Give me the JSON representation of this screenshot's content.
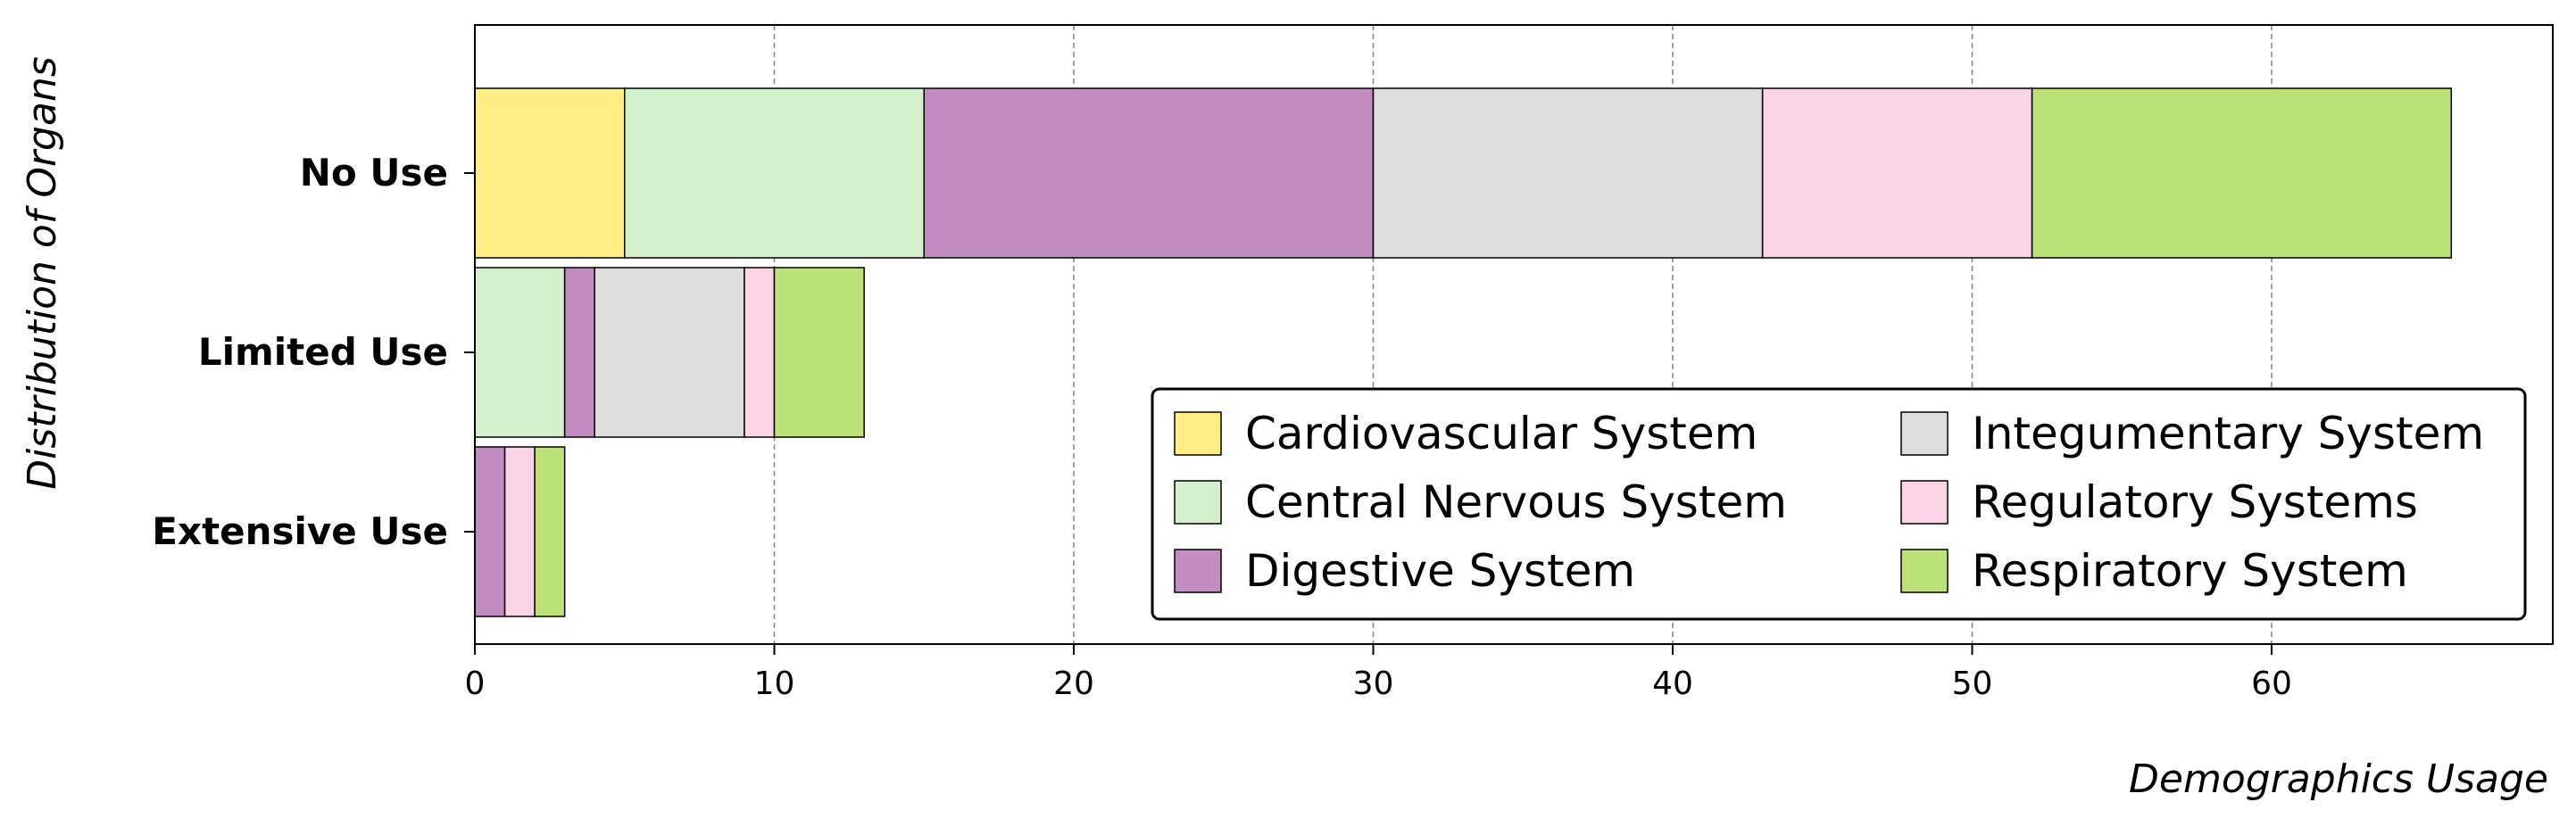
{
  "chart_data": {
    "type": "bar",
    "orientation": "horizontal",
    "stacked": true,
    "xlabel": "Demographics Usage",
    "ylabel": "Distribution of Organs",
    "xlim": [
      0,
      69
    ],
    "xticks": [
      0,
      10,
      20,
      30,
      40,
      50,
      60
    ],
    "grid": "x-dashed",
    "legend_position": "lower-right",
    "legend_columns": 2,
    "categories": [
      "No Use",
      "Limited Use",
      "Extensive Use"
    ],
    "series": [
      {
        "name": "Cardiovascular System",
        "color": "#FFED85",
        "values": [
          5,
          0,
          0
        ]
      },
      {
        "name": "Central Nervous System",
        "color": "#D3EFCC",
        "values": [
          10,
          3,
          0
        ]
      },
      {
        "name": "Digestive System",
        "color": "#C28BC1",
        "values": [
          15,
          1,
          1
        ]
      },
      {
        "name": "Integumentary System",
        "color": "#DDDDDD",
        "values": [
          13,
          5,
          0
        ]
      },
      {
        "name": "Regulatory Systems",
        "color": "#FAD3E6",
        "values": [
          9,
          1,
          1
        ]
      },
      {
        "name": "Respiratory System",
        "color": "#BCE177",
        "values": [
          14,
          3,
          1
        ]
      }
    ]
  }
}
